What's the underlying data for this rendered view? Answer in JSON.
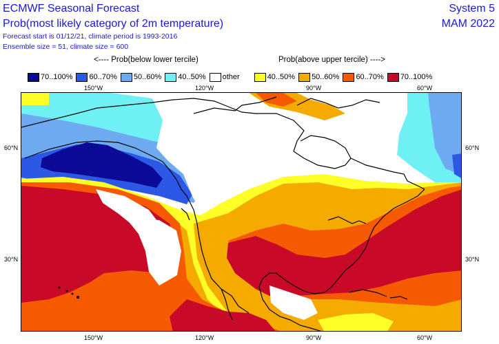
{
  "header": {
    "title": "ECMWF Seasonal Forecast",
    "subtitle": "Prob(most likely category of 2m temperature)",
    "forecast_info": "Forecast start is 01/12/21, climate period is 1993-2016",
    "ensemble_info": "Ensemble size = 51, climate size = 600",
    "system": "System 5",
    "season": "MAM 2022"
  },
  "tercile_labels": {
    "below": "<---- Prob(below lower tercile)",
    "above": "Prob(above upper tercile) ---->"
  },
  "legend": [
    {
      "label": "70..100%",
      "color": "#0a0a96"
    },
    {
      "label": "60..70%",
      "color": "#2d58e6"
    },
    {
      "label": "50..60%",
      "color": "#6eaaf0"
    },
    {
      "label": "40..50%",
      "color": "#6ef0f5"
    },
    {
      "label": "other",
      "color": "#ffffff"
    },
    {
      "label": "40..50%",
      "color": "#ffff28"
    },
    {
      "label": "50..60%",
      "color": "#f5aa00"
    },
    {
      "label": "60..70%",
      "color": "#f55a00"
    },
    {
      "label": "70..100%",
      "color": "#c80a28"
    }
  ],
  "axes": {
    "lon_top": [
      "150°W",
      "120°W",
      "90°W",
      "60°W"
    ],
    "lon_bottom": [
      "150°W",
      "120°W",
      "90°W",
      "60°W"
    ],
    "lat_left": [
      "60°N",
      "30°N"
    ],
    "lat_right": [
      "60°N",
      "30°N"
    ]
  }
}
